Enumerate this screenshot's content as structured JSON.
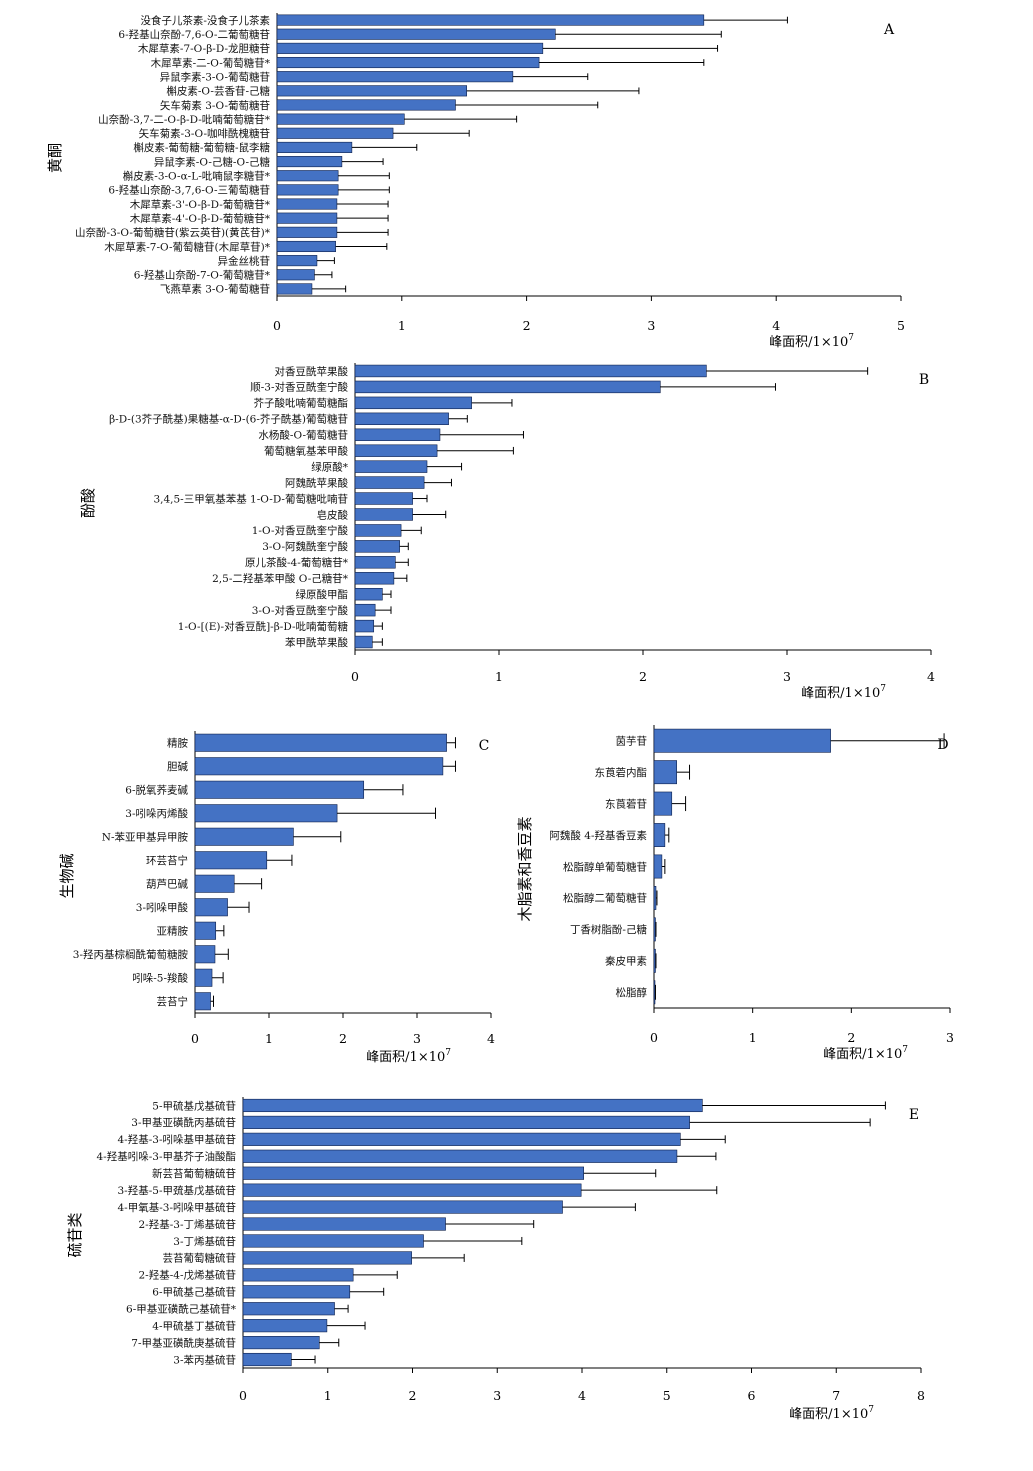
{
  "bar_color": "#4472c4",
  "bar_edge_color": "#0d1f4a",
  "chart_data": [
    {
      "id": "A",
      "type": "bar",
      "orientation": "horizontal",
      "panel_label": "A",
      "ylabel": "黄酮",
      "xlabel_prefix": "峰面积/1×10",
      "xlabel_exp": "7",
      "xlim": [
        0,
        5
      ],
      "xticks": [
        0,
        1,
        2,
        3,
        4,
        5
      ],
      "categories": [
        "没食子儿茶素-没食子儿茶素",
        "6-羟基山奈酚-7,6-O-二葡萄糖苷",
        "木犀草素-7-O-β-D-龙胆糖苷",
        "木犀草素-二-O-葡萄糖苷*",
        "异鼠李素-3-O-葡萄糖苷",
        "槲皮素-O-芸香苷-己糖",
        "矢车菊素 3-O-葡萄糖苷",
        "山奈酚-3,7-二-O-β-D-吡喃葡萄糖苷*",
        "矢车菊素-3-O-咖啡酰槐糖苷",
        "槲皮素-葡萄糖-葡萄糖-鼠李糖",
        "异鼠李素-O-己糖-O-己糖",
        "槲皮素-3-O-α-L-吡喃鼠李糖苷*",
        "6-羟基山奈酚-3,7,6-O-三葡萄糖苷",
        "木犀草素-3'-O-β-D-葡萄糖苷*",
        "木犀草素-4'-O-β-D-葡萄糖苷*",
        "山奈酚-3-O-葡萄糖苷(紫云英苷)(黄芪苷)*",
        "木犀草素-7-O-葡萄糖苷(木犀草苷)*",
        "异金丝桃苷",
        "6-羟基山奈酚-7-O-葡萄糖苷*",
        "飞燕草素 3-O-葡萄糖苷"
      ],
      "values": [
        3.42,
        2.23,
        2.13,
        2.1,
        1.89,
        1.52,
        1.43,
        1.02,
        0.93,
        0.6,
        0.52,
        0.49,
        0.49,
        0.48,
        0.48,
        0.48,
        0.47,
        0.32,
        0.3,
        0.28
      ],
      "errors": [
        0.67,
        1.33,
        1.4,
        1.32,
        0.6,
        1.38,
        1.14,
        0.9,
        0.61,
        0.52,
        0.33,
        0.41,
        0.41,
        0.41,
        0.41,
        0.41,
        0.41,
        0.14,
        0.14,
        0.27
      ]
    },
    {
      "id": "B",
      "type": "bar",
      "orientation": "horizontal",
      "panel_label": "B",
      "ylabel": "酚酸",
      "xlabel_prefix": "峰面积/1×10",
      "xlabel_exp": "7",
      "xlim": [
        0,
        4
      ],
      "xticks": [
        0,
        1,
        2,
        3,
        4
      ],
      "categories": [
        "对香豆酰苹果酸",
        "顺-3-对香豆酰奎宁酸",
        "芥子酸吡喃葡萄糖酯",
        "β-D-(3芥子酰基)果糖基-α-D-(6-芥子酰基)葡萄糖苷",
        "水杨酸-O-葡萄糖苷",
        "葡萄糖氧基苯甲酸",
        "绿原酸*",
        "阿魏酰苹果酸",
        "3,4,5-三甲氧基苯基 1-O-D-葡萄糖吡喃苷",
        "皂皮酸",
        "1-O-对香豆酰奎宁酸",
        "3-O-阿魏酰奎宁酸",
        "原儿茶酸-4-葡萄糖苷*",
        "2,5-二羟基苯甲酸 O-己糖苷*",
        "绿原酸甲酯",
        "3-O-对香豆酰奎宁酸",
        "1-O-[(E)-对香豆酰]-β-D-吡喃葡萄糖",
        "苯甲酰苹果酸"
      ],
      "values": [
        2.44,
        2.12,
        0.81,
        0.65,
        0.59,
        0.57,
        0.5,
        0.48,
        0.4,
        0.4,
        0.32,
        0.31,
        0.28,
        0.27,
        0.19,
        0.14,
        0.13,
        0.12
      ],
      "errors": [
        1.12,
        0.8,
        0.28,
        0.13,
        0.58,
        0.53,
        0.24,
        0.19,
        0.1,
        0.23,
        0.14,
        0.06,
        0.09,
        0.09,
        0.06,
        0.11,
        0.06,
        0.07
      ]
    },
    {
      "id": "C",
      "type": "bar",
      "orientation": "horizontal",
      "panel_label": "C",
      "ylabel": "生物碱",
      "xlabel_prefix": "峰面积/1×10",
      "xlabel_exp": "7",
      "xlim": [
        0,
        4
      ],
      "xticks": [
        0,
        1,
        2,
        3,
        4
      ],
      "categories": [
        "精胺",
        "胆碱",
        "6-脱氧荞麦碱",
        "3-吲哚丙烯酸",
        "N-苯亚甲基异甲胺",
        "环芸苔宁",
        "葫芦巴碱",
        "3-吲哚甲酸",
        "亚精胺",
        "3-羟丙基棕榈酰葡萄糖胺",
        "吲哚-5-羧酸",
        "芸苔宁"
      ],
      "values": [
        3.4,
        3.35,
        2.28,
        1.92,
        1.33,
        0.97,
        0.53,
        0.44,
        0.28,
        0.27,
        0.23,
        0.21
      ],
      "errors": [
        0.12,
        0.17,
        0.53,
        1.33,
        0.64,
        0.34,
        0.37,
        0.29,
        0.11,
        0.18,
        0.15,
        0.04
      ]
    },
    {
      "id": "D",
      "type": "bar",
      "orientation": "horizontal",
      "panel_label": "D",
      "ylabel": "木脂素和香豆素",
      "xlabel_prefix": "峰面积/1×10",
      "xlabel_exp": "7",
      "xlim": [
        0,
        3
      ],
      "xticks": [
        0,
        1,
        2,
        3
      ],
      "categories": [
        "茵芋苷",
        "东莨菪内酯",
        "东莨菪苷",
        "阿魏酸 4-羟基香豆素",
        "松脂醇单葡萄糖苷",
        "松脂醇二葡萄糖苷",
        "丁香树脂酚-己糖",
        "秦皮甲素",
        "松脂醇"
      ],
      "values": [
        1.79,
        0.23,
        0.18,
        0.11,
        0.08,
        0.02,
        0.015,
        0.015,
        0.01
      ],
      "errors": [
        1.15,
        0.13,
        0.14,
        0.04,
        0.03,
        0.01,
        0.005,
        0.005,
        0.005
      ]
    },
    {
      "id": "E",
      "type": "bar",
      "orientation": "horizontal",
      "panel_label": "E",
      "ylabel": "硫苷类",
      "xlabel_prefix": "峰面积/1×10",
      "xlabel_exp": "7",
      "xlim": [
        0,
        8
      ],
      "xticks": [
        0,
        1,
        2,
        3,
        4,
        5,
        6,
        7,
        8
      ],
      "categories": [
        "5-甲硫基戊基硫苷",
        "3-甲基亚磺酰丙基硫苷",
        "4-羟基-3-吲哚基甲基硫苷",
        "4-羟基吲哚-3-甲基芥子油酸酯",
        "新芸苔葡萄糖硫苷",
        "3-羟基-5-甲巯基戊基硫苷",
        "4-甲氧基-3-吲哚甲基硫苷",
        "2-羟基-3-丁烯基硫苷",
        "3-丁烯基硫苷",
        "芸苔葡萄糖硫苷",
        "2-羟基-4-戊烯基硫苷",
        "6-甲硫基己基硫苷",
        "6-甲基亚磺酰己基硫苷*",
        "4-甲硫基丁基硫苷",
        "7-甲基亚磺酰庚基硫苷",
        "3-苯丙基硫苷"
      ],
      "values": [
        5.42,
        5.27,
        5.16,
        5.12,
        4.02,
        3.99,
        3.77,
        2.39,
        2.13,
        1.99,
        1.3,
        1.26,
        1.08,
        0.99,
        0.9,
        0.57
      ],
      "errors": [
        2.16,
        2.13,
        0.53,
        0.46,
        0.85,
        1.6,
        0.86,
        1.04,
        1.16,
        0.62,
        0.52,
        0.4,
        0.16,
        0.45,
        0.23,
        0.28
      ]
    }
  ]
}
